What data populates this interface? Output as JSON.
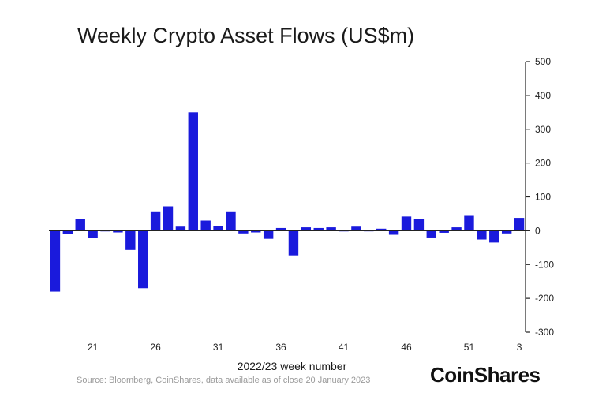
{
  "chart_data": {
    "type": "bar",
    "title": "Weekly Crypto Asset Flows (US$m)",
    "xlabel": "2022/23 week number",
    "ylabel": "",
    "ylim": [
      -300,
      500
    ],
    "yticks": [
      500,
      400,
      300,
      200,
      100,
      0,
      -100,
      -200,
      -300
    ],
    "xtick_labels": [
      {
        "category": "21",
        "label": "21"
      },
      {
        "category": "26",
        "label": "26"
      },
      {
        "category": "31",
        "label": "31"
      },
      {
        "category": "36",
        "label": "36"
      },
      {
        "category": "41",
        "label": "41"
      },
      {
        "category": "46",
        "label": "46"
      },
      {
        "category": "51",
        "label": "51"
      },
      {
        "category": "3",
        "label": "3"
      }
    ],
    "categories": [
      "18",
      "19",
      "20",
      "21",
      "22",
      "23",
      "24",
      "25",
      "26",
      "27",
      "28",
      "29",
      "30",
      "31",
      "32",
      "33",
      "34",
      "35",
      "36",
      "37",
      "38",
      "39",
      "40",
      "41",
      "42",
      "43",
      "44",
      "45",
      "46",
      "47",
      "48",
      "49",
      "50",
      "51",
      "52",
      "1",
      "2",
      "3"
    ],
    "values": [
      -180,
      -10,
      35,
      -22,
      -2,
      -5,
      -57,
      -170,
      55,
      72,
      12,
      350,
      30,
      14,
      55,
      -8,
      -5,
      -24,
      8,
      -73,
      10,
      8,
      10,
      -2,
      12,
      0,
      6,
      -12,
      42,
      34,
      -20,
      -6,
      10,
      44,
      -26,
      -35,
      -8,
      38
    ],
    "bar_color": "#1a1adc",
    "grid": false,
    "axis_position": "right"
  },
  "footer": {
    "source": "Source: Bloomberg, CoinShares, data available as of close 20 January 2023",
    "brand": "CoinShares"
  }
}
